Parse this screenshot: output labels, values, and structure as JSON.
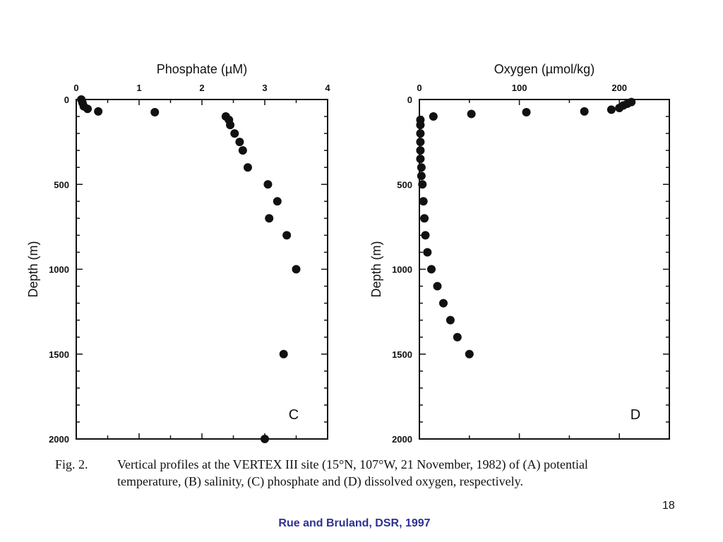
{
  "chart_data": [
    {
      "type": "scatter",
      "panel_label": "C",
      "xlabel": "Phosphate (µM)",
      "ylabel": "Depth (m)",
      "xlim": [
        0,
        4
      ],
      "ylim": [
        0,
        2000
      ],
      "y_inverted": true,
      "x_ticks": [
        0,
        1,
        2,
        3,
        4
      ],
      "y_ticks": [
        0,
        500,
        1000,
        1500,
        2000
      ],
      "grid": false,
      "points": [
        {
          "x": 0.08,
          "y": 0
        },
        {
          "x": 0.1,
          "y": 20
        },
        {
          "x": 0.12,
          "y": 40
        },
        {
          "x": 0.18,
          "y": 55
        },
        {
          "x": 0.35,
          "y": 70
        },
        {
          "x": 1.25,
          "y": 75
        },
        {
          "x": 2.38,
          "y": 100
        },
        {
          "x": 2.43,
          "y": 120
        },
        {
          "x": 2.45,
          "y": 150
        },
        {
          "x": 2.52,
          "y": 200
        },
        {
          "x": 2.6,
          "y": 250
        },
        {
          "x": 2.65,
          "y": 300
        },
        {
          "x": 2.73,
          "y": 400
        },
        {
          "x": 3.05,
          "y": 500
        },
        {
          "x": 3.2,
          "y": 600
        },
        {
          "x": 3.07,
          "y": 700
        },
        {
          "x": 3.35,
          "y": 800
        },
        {
          "x": 3.5,
          "y": 1000
        },
        {
          "x": 3.3,
          "y": 1500
        },
        {
          "x": 3.0,
          "y": 2000
        }
      ]
    },
    {
      "type": "scatter",
      "panel_label": "D",
      "xlabel": "Oxygen (µmol/kg)",
      "ylabel": "Depth (m)",
      "xlim": [
        0,
        250
      ],
      "ylim": [
        0,
        2000
      ],
      "y_inverted": true,
      "x_ticks": [
        0,
        100,
        200
      ],
      "y_ticks": [
        0,
        500,
        1000,
        1500,
        2000
      ],
      "grid": false,
      "points": [
        {
          "x": 212,
          "y": 15
        },
        {
          "x": 208,
          "y": 25
        },
        {
          "x": 204,
          "y": 35
        },
        {
          "x": 200,
          "y": 50
        },
        {
          "x": 192,
          "y": 60
        },
        {
          "x": 165,
          "y": 70
        },
        {
          "x": 107,
          "y": 75
        },
        {
          "x": 52,
          "y": 85
        },
        {
          "x": 14,
          "y": 100
        },
        {
          "x": 1,
          "y": 120
        },
        {
          "x": 1,
          "y": 150
        },
        {
          "x": 1,
          "y": 200
        },
        {
          "x": 1,
          "y": 250
        },
        {
          "x": 1,
          "y": 300
        },
        {
          "x": 1,
          "y": 350
        },
        {
          "x": 2,
          "y": 400
        },
        {
          "x": 2,
          "y": 450
        },
        {
          "x": 3,
          "y": 500
        },
        {
          "x": 4,
          "y": 600
        },
        {
          "x": 5,
          "y": 700
        },
        {
          "x": 6,
          "y": 800
        },
        {
          "x": 8,
          "y": 900
        },
        {
          "x": 12,
          "y": 1000
        },
        {
          "x": 18,
          "y": 1100
        },
        {
          "x": 24,
          "y": 1200
        },
        {
          "x": 31,
          "y": 1300
        },
        {
          "x": 38,
          "y": 1400
        },
        {
          "x": 50,
          "y": 1500
        }
      ]
    }
  ],
  "caption": {
    "label": "Fig. 2.",
    "line1": "Vertical profiles at the VERTEX III site (15°N, 107°W, 21 November, 1982) of (A) potential",
    "line2": "temperature, (B) salinity, (C) phosphate and (D) dissolved oxygen, respectively."
  },
  "slide_number": "18",
  "citation": "Rue and Bruland, DSR, 1997",
  "colors": {
    "ink": "#111111",
    "citation": "#2e3192",
    "background": "#ffffff"
  }
}
